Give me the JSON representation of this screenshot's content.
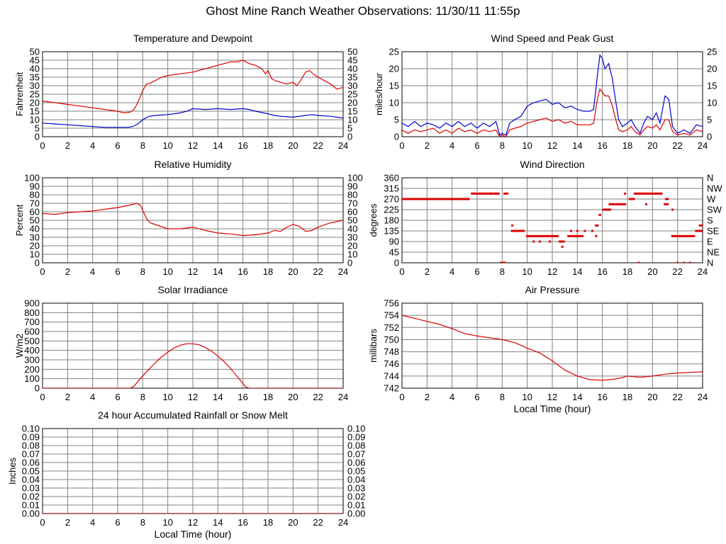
{
  "page": {
    "title": "Ghost Mine Ranch Weather Observations: 11/30/11 11:55p"
  },
  "colors": {
    "primary_series": "#dd0000",
    "secondary_series": "#0000cc",
    "grid": "#808080",
    "frame": "#000000"
  },
  "chart_data": [
    {
      "id": "temperature",
      "type": "line",
      "title": "Temperature and Dewpoint",
      "xlabel": "",
      "ylabel": "Fahrenheit",
      "xlim": [
        0,
        24
      ],
      "ylim": [
        0,
        50
      ],
      "x_ticks": [
        "0",
        "2",
        "4",
        "6",
        "8",
        "10",
        "12",
        "14",
        "16",
        "18",
        "20",
        "22",
        "24"
      ],
      "y_ticks": [
        "0",
        "5",
        "10",
        "15",
        "20",
        "25",
        "30",
        "35",
        "40",
        "45",
        "50"
      ],
      "right_y_ticks": [
        "0",
        "5",
        "10",
        "15",
        "20",
        "25",
        "30",
        "35",
        "40",
        "45",
        "50"
      ],
      "grid": true,
      "series": [
        {
          "color": "#dd0000",
          "x": [
            0,
            1,
            2,
            3,
            4,
            5,
            6,
            6.5,
            7,
            7.3,
            7.6,
            8,
            8.3,
            8.6,
            9,
            9.5,
            10,
            11,
            12,
            13,
            14,
            15,
            15.5,
            16,
            16.5,
            17,
            17.5,
            17.8,
            18,
            18.3,
            18.6,
            19,
            19.5,
            20,
            20.3,
            20.6,
            21,
            21.3,
            21.6,
            22,
            22.5,
            23,
            23.5,
            24
          ],
          "y": [
            21,
            20,
            19,
            18,
            17,
            16,
            15,
            14,
            14.5,
            16,
            20,
            27,
            31,
            31.5,
            33,
            35,
            36,
            37,
            38,
            40,
            42,
            44,
            44,
            45,
            43,
            42,
            40,
            37,
            39,
            34,
            33,
            32,
            31,
            32,
            30,
            33,
            38,
            39,
            37,
            35,
            33,
            31,
            28,
            29
          ]
        },
        {
          "color": "#0000cc",
          "x": [
            0,
            1,
            2,
            3,
            4,
            5,
            6,
            6.8,
            7.2,
            7.6,
            8,
            8.5,
            9,
            10,
            11,
            11.5,
            12,
            13,
            14,
            15,
            16,
            16.5,
            17,
            18,
            18.5,
            19,
            20,
            21,
            21.5,
            22,
            23,
            24
          ],
          "y": [
            8,
            7.5,
            7,
            6.5,
            6,
            5.5,
            5.5,
            5.5,
            6,
            7.5,
            10,
            12,
            12.5,
            13,
            14,
            15,
            16.5,
            16,
            16.5,
            16,
            16.5,
            16,
            15,
            13.5,
            12.5,
            12,
            11.5,
            12.5,
            13,
            12.5,
            12,
            11
          ]
        }
      ]
    },
    {
      "id": "humidity",
      "type": "line",
      "title": "Relative Humidity",
      "xlabel": "",
      "ylabel": "Percent",
      "xlim": [
        0,
        24
      ],
      "ylim": [
        0,
        100
      ],
      "x_ticks": [
        "0",
        "2",
        "4",
        "6",
        "8",
        "10",
        "12",
        "14",
        "16",
        "18",
        "20",
        "22",
        "24"
      ],
      "y_ticks": [
        "0",
        "10",
        "20",
        "30",
        "40",
        "50",
        "60",
        "70",
        "80",
        "90",
        "100"
      ],
      "right_y_ticks": [
        "0",
        "10",
        "20",
        "30",
        "40",
        "50",
        "60",
        "70",
        "80",
        "90",
        "100"
      ],
      "grid": true,
      "series": [
        {
          "color": "#dd0000",
          "x": [
            0,
            1,
            2,
            3,
            4,
            5,
            6,
            7,
            7.5,
            7.8,
            8,
            8.3,
            8.6,
            9,
            10,
            11,
            12,
            13,
            14,
            15,
            16,
            17,
            18,
            18.5,
            19,
            19.5,
            20,
            20.5,
            21,
            21.5,
            22,
            23,
            24
          ],
          "y": [
            58,
            57,
            59,
            60,
            61,
            63,
            65,
            68,
            70,
            68,
            62,
            52,
            47,
            45,
            40,
            40,
            42,
            38,
            35,
            34,
            32,
            33,
            35,
            38,
            37,
            42,
            45,
            43,
            37,
            38,
            42,
            47,
            50
          ]
        }
      ]
    },
    {
      "id": "solar",
      "type": "line",
      "title": "Solar Irradiance",
      "xlabel": "",
      "ylabel": "W/m2",
      "xlim": [
        0,
        24
      ],
      "ylim": [
        0,
        900
      ],
      "x_ticks": [
        "0",
        "2",
        "4",
        "6",
        "8",
        "10",
        "12",
        "14",
        "16",
        "18",
        "20",
        "22",
        "24"
      ],
      "y_ticks": [
        "0",
        "100",
        "200",
        "300",
        "400",
        "500",
        "600",
        "700",
        "800",
        "900"
      ],
      "grid": true,
      "series": [
        {
          "color": "#dd0000",
          "x": [
            0,
            7,
            7.3,
            7.6,
            8,
            8.5,
            9,
            9.5,
            10,
            10.5,
            11,
            11.5,
            12,
            12.5,
            13,
            13.5,
            14,
            14.5,
            15,
            15.5,
            16,
            16.2,
            16.5,
            24
          ],
          "y": [
            0,
            0,
            20,
            70,
            130,
            200,
            270,
            330,
            380,
            425,
            455,
            470,
            470,
            460,
            430,
            390,
            340,
            280,
            210,
            130,
            50,
            15,
            0,
            0
          ]
        }
      ]
    },
    {
      "id": "rainfall",
      "type": "line",
      "title": "24 hour Accumulated Rainfall or Snow Melt",
      "xlabel": "Local Time (hour)",
      "ylabel": "Inches",
      "xlim": [
        0,
        24
      ],
      "ylim": [
        0,
        0.1
      ],
      "x_ticks": [
        "0",
        "2",
        "4",
        "6",
        "8",
        "10",
        "12",
        "14",
        "16",
        "18",
        "20",
        "22",
        "24"
      ],
      "y_ticks": [
        "0.00",
        "0.01",
        "0.02",
        "0.03",
        "0.04",
        "0.05",
        "0.06",
        "0.07",
        "0.08",
        "0.09",
        "0.10"
      ],
      "right_y_ticks": [
        "0.00",
        "0.01",
        "0.02",
        "0.03",
        "0.04",
        "0.05",
        "0.06",
        "0.07",
        "0.08",
        "0.09",
        "0.10"
      ],
      "grid": true,
      "series": [
        {
          "color": "#dd0000",
          "x": [
            0,
            24
          ],
          "y": [
            0,
            0
          ]
        }
      ]
    },
    {
      "id": "wind_speed",
      "type": "line",
      "title": "Wind Speed and Peak Gust",
      "xlabel": "",
      "ylabel": "miles/hour",
      "xlim": [
        0,
        24
      ],
      "ylim": [
        0,
        25
      ],
      "x_ticks": [
        "0",
        "2",
        "4",
        "6",
        "8",
        "10",
        "12",
        "14",
        "16",
        "18",
        "20",
        "22",
        "24"
      ],
      "y_ticks": [
        "0",
        "5",
        "10",
        "15",
        "20",
        "25"
      ],
      "right_y_ticks": [
        "0",
        "5",
        "10",
        "15",
        "20",
        "25"
      ],
      "grid": true,
      "series": [
        {
          "color": "#0000cc",
          "x": [
            0,
            0.5,
            1,
            1.5,
            2,
            2.5,
            3,
            3.5,
            4,
            4.5,
            5,
            5.5,
            6,
            6.5,
            7,
            7.5,
            7.8,
            8,
            8.3,
            8.6,
            9,
            9.5,
            10,
            10.5,
            11,
            11.5,
            12,
            12.5,
            13,
            13.5,
            14,
            14.5,
            15,
            15.3,
            15.6,
            15.8,
            16,
            16.2,
            16.5,
            16.8,
            17,
            17.3,
            17.6,
            18,
            18.3,
            18.6,
            19,
            19.3,
            19.6,
            20,
            20.3,
            20.6,
            21,
            21.3,
            21.6,
            22,
            22.5,
            23,
            23.5,
            24
          ],
          "y": [
            4,
            3,
            4.5,
            3,
            4,
            3.5,
            2.5,
            4,
            3,
            4.5,
            3,
            4,
            2.5,
            4,
            3,
            4.5,
            0.5,
            1,
            0.5,
            4,
            5,
            6,
            9,
            10,
            10.5,
            11,
            9.5,
            10,
            8.5,
            9,
            8,
            7.5,
            7.5,
            8,
            18,
            24,
            23,
            20,
            21.5,
            17,
            12,
            5,
            3,
            4,
            5,
            3,
            1,
            4,
            6,
            5,
            7,
            4,
            12,
            11,
            3,
            1,
            2,
            1,
            3.5,
            3
          ]
        },
        {
          "color": "#dd0000",
          "x": [
            0,
            0.5,
            1,
            1.5,
            2,
            2.5,
            3,
            3.5,
            4,
            4.5,
            5,
            5.5,
            6,
            6.5,
            7,
            7.5,
            7.8,
            8,
            8.3,
            8.6,
            9,
            9.5,
            10,
            10.5,
            11,
            11.5,
            12,
            12.5,
            13,
            13.5,
            14,
            14.5,
            15,
            15.3,
            15.6,
            15.8,
            16,
            16.2,
            16.5,
            16.8,
            17,
            17.3,
            17.6,
            18,
            18.3,
            18.6,
            19,
            19.3,
            19.6,
            20,
            20.3,
            20.6,
            21,
            21.3,
            21.6,
            22,
            22.5,
            23,
            23.5,
            24
          ],
          "y": [
            2,
            1,
            2,
            1.5,
            2,
            2.5,
            1,
            2,
            1,
            2.5,
            1.5,
            2,
            1,
            2,
            1.5,
            2,
            0,
            0.5,
            0,
            2,
            2.5,
            3,
            4,
            4.5,
            5,
            5.5,
            4.5,
            5,
            4,
            4.5,
            3.5,
            3.5,
            3.5,
            4,
            11,
            14,
            13,
            12,
            12,
            9,
            6,
            2,
            1.5,
            2,
            3,
            1.5,
            0.5,
            2,
            3,
            2.5,
            3.5,
            2,
            5,
            5,
            1.5,
            0.5,
            1,
            0.5,
            2,
            1.5
          ]
        }
      ]
    },
    {
      "id": "wind_direction",
      "type": "scatter",
      "title": "Wind Direction",
      "xlabel": "",
      "ylabel": "degrees",
      "xlim": [
        0,
        24
      ],
      "ylim": [
        0,
        360
      ],
      "x_ticks": [
        "0",
        "2",
        "4",
        "6",
        "8",
        "10",
        "12",
        "14",
        "16",
        "18",
        "20",
        "22",
        "24"
      ],
      "y_ticks": [
        "0",
        "45",
        "90",
        "135",
        "180",
        "225",
        "270",
        "315",
        "360"
      ],
      "right_y_ticks": [
        "N",
        "NE",
        "E",
        "SE",
        "S",
        "SW",
        "W",
        "NW",
        "N"
      ],
      "grid": true,
      "segments": [
        {
          "x1": 0,
          "x2": 5.4,
          "y": 270
        },
        {
          "x1": 5.5,
          "x2": 7.8,
          "y": 293
        },
        {
          "x1": 8.1,
          "x2": 8.5,
          "y": 293
        },
        {
          "x1": 7.8,
          "x2": 8.3,
          "y": 0
        },
        {
          "x1": 8.7,
          "x2": 9.8,
          "y": 135
        },
        {
          "x1": 9.9,
          "x2": 12.5,
          "y": 113
        },
        {
          "x1": 13.2,
          "x2": 14.5,
          "y": 113
        },
        {
          "x1": 12.5,
          "x2": 13,
          "y": 90
        },
        {
          "x1": 15.4,
          "x2": 15.7,
          "y": 158
        },
        {
          "x1": 15.7,
          "x2": 15.9,
          "y": 203
        },
        {
          "x1": 16,
          "x2": 16.7,
          "y": 225
        },
        {
          "x1": 16.5,
          "x2": 17,
          "y": 248
        },
        {
          "x1": 17,
          "x2": 17.9,
          "y": 248
        },
        {
          "x1": 18.1,
          "x2": 18.6,
          "y": 270
        },
        {
          "x1": 18.5,
          "x2": 20.8,
          "y": 293
        },
        {
          "x1": 21,
          "x2": 21.3,
          "y": 270
        },
        {
          "x1": 20.9,
          "x2": 21.3,
          "y": 248
        },
        {
          "x1": 21.5,
          "x2": 23.4,
          "y": 113
        },
        {
          "x1": 23.4,
          "x2": 24,
          "y": 135
        },
        {
          "x1": 23.7,
          "x2": 24,
          "y": 158
        }
      ],
      "points": [
        {
          "x": 8.8,
          "y": 158
        },
        {
          "x": 10.5,
          "y": 90
        },
        {
          "x": 11,
          "y": 90
        },
        {
          "x": 11.8,
          "y": 90
        },
        {
          "x": 12.8,
          "y": 68
        },
        {
          "x": 13.5,
          "y": 135
        },
        {
          "x": 14,
          "y": 135
        },
        {
          "x": 14.6,
          "y": 135
        },
        {
          "x": 15.2,
          "y": 135
        },
        {
          "x": 15.5,
          "y": 113
        },
        {
          "x": 17.8,
          "y": 293
        },
        {
          "x": 19.5,
          "y": 248
        },
        {
          "x": 18.9,
          "y": 0
        },
        {
          "x": 22,
          "y": 0
        },
        {
          "x": 22.5,
          "y": 0
        },
        {
          "x": 23,
          "y": 0
        },
        {
          "x": 21.6,
          "y": 225
        },
        {
          "x": 7.1,
          "y": 293
        },
        {
          "x": 7.5,
          "y": 293
        }
      ]
    },
    {
      "id": "pressure",
      "type": "line",
      "title": "Air Pressure",
      "xlabel": "Local Time (hour)",
      "ylabel": "millibars",
      "xlim": [
        0,
        24
      ],
      "ylim": [
        742,
        756
      ],
      "x_ticks": [
        "0",
        "2",
        "4",
        "6",
        "8",
        "10",
        "12",
        "14",
        "16",
        "18",
        "20",
        "22",
        "24"
      ],
      "y_ticks": [
        "742",
        "744",
        "746",
        "748",
        "750",
        "752",
        "754",
        "756"
      ],
      "grid": true,
      "series": [
        {
          "color": "#dd0000",
          "x": [
            0,
            1,
            2,
            3,
            4,
            5,
            6,
            7,
            8,
            9,
            10,
            11,
            12,
            13,
            14,
            15,
            16,
            16.5,
            17,
            17.5,
            18,
            19,
            20,
            21,
            22,
            23,
            24
          ],
          "y": [
            754,
            753.5,
            753,
            752.5,
            751.8,
            751,
            750.6,
            750.3,
            750,
            749.5,
            748.6,
            747.8,
            746.5,
            745,
            744,
            743.4,
            743.3,
            743.4,
            743.5,
            743.7,
            744,
            743.8,
            744,
            744.3,
            744.5,
            744.6,
            744.7
          ]
        }
      ]
    }
  ]
}
